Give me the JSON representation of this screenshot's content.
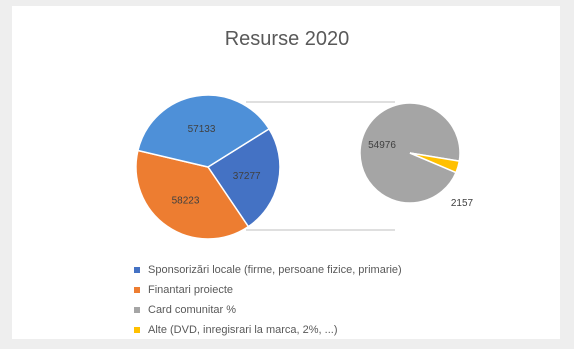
{
  "chart_data": {
    "type": "pie",
    "title": "Resurse 2020",
    "variant": "pie-of-pie",
    "main_pie": [
      {
        "label": "Sponsorizări locale (firme, persoane fizice, primarie)",
        "value": 37277,
        "display": "37277",
        "color": "#4472C4"
      },
      {
        "label": "Finantari proiecte",
        "value": 58223,
        "display": "58223",
        "color": "#ED7D31"
      },
      {
        "label": "Card comunitar %",
        "value": 57133,
        "display": "57133",
        "color": "#4E90D8"
      }
    ],
    "sub_pie": [
      {
        "label": "Card comunitar %",
        "value": 54976,
        "display": "54976",
        "color": "#A5A5A5"
      },
      {
        "label": "Alte (DVD, inregisrari la marca, 2%, ...)",
        "value": 2157,
        "display": "2157",
        "color": "#FFC000"
      }
    ],
    "legend": [
      {
        "label": "Sponsorizări locale (firme, persoane fizice, primarie)",
        "color": "#4472C4"
      },
      {
        "label": "Finantari proiecte",
        "color": "#ED7D31"
      },
      {
        "label": "Card comunitar %",
        "color": "#A5A5A5"
      },
      {
        "label": "Alte (DVD, inregisrari la marca, 2%, ...)",
        "color": "#FFC000"
      }
    ]
  }
}
